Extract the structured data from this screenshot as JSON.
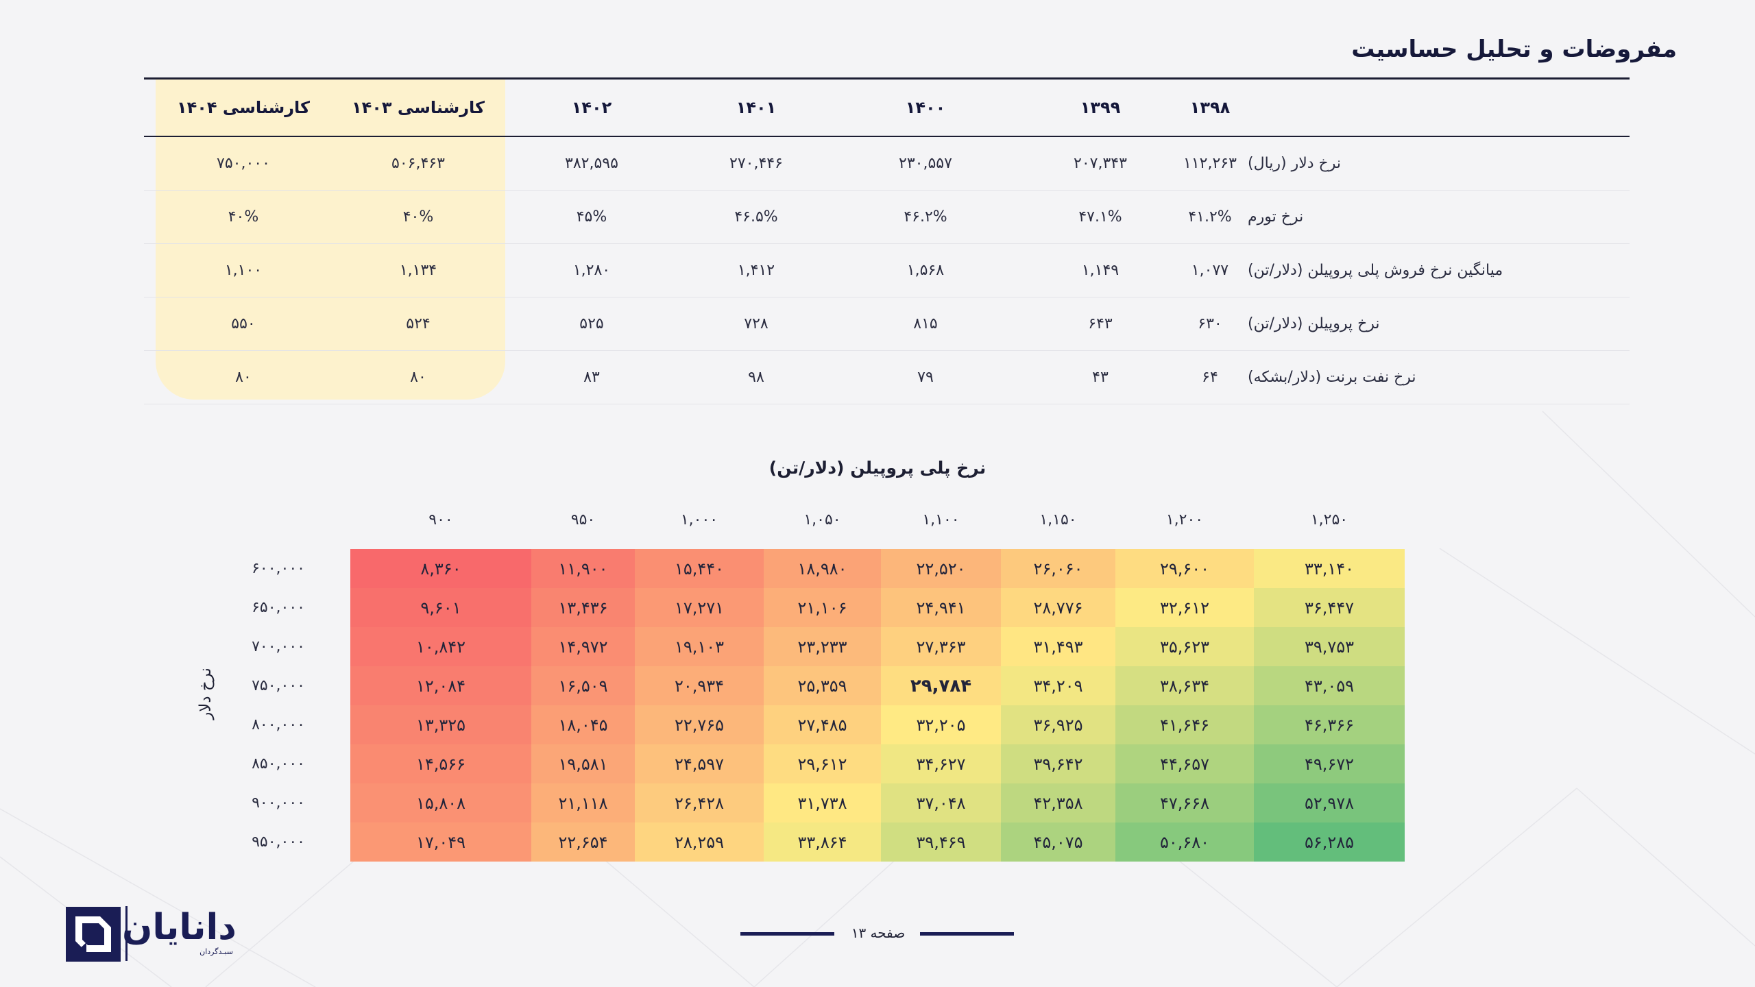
{
  "page": {
    "title": "مفروضات و تحلیل حساسیت",
    "footer": {
      "page_label": "صفحه ۱۳"
    },
    "logo": {
      "name": "دانایان",
      "subtitle": "سبـدگردان",
      "icon": "danayan-logo-icon"
    }
  },
  "colors": {
    "accent": "#1a1d55",
    "highlight": "#fdf2cd",
    "heat_low": "#f8696b",
    "heat_mid": "#ffeb84",
    "heat_high": "#63be7b"
  },
  "assumptions": {
    "columns": [
      "۱۳۹۸",
      "۱۳۹۹",
      "۱۴۰۰",
      "۱۴۰۱",
      "۱۴۰۲",
      "کارشناسی ۱۴۰۳",
      "کارشناسی ۱۴۰۴"
    ],
    "rows": [
      {
        "label": "نرخ دلار (ریال)",
        "values": [
          "۱۱۲,۲۶۳",
          "۲۰۷,۳۴۳",
          "۲۳۰,۵۵۷",
          "۲۷۰,۴۴۶",
          "۳۸۲,۵۹۵",
          "۵۰۶,۴۶۳",
          "۷۵۰,۰۰۰"
        ]
      },
      {
        "label": "نرخ تورم",
        "values": [
          "۴۱.۲%",
          "۴۷.۱%",
          "۴۶.۲%",
          "۴۶.۵%",
          "۴۵%",
          "۴۰%",
          "۴۰%"
        ]
      },
      {
        "label": "میانگین نرخ فروش پلی پروپیلن (دلار/تن)",
        "values": [
          "۱,۰۷۷",
          "۱,۱۴۹",
          "۱,۵۶۸",
          "۱,۴۱۲",
          "۱,۲۸۰",
          "۱,۱۳۴",
          "۱,۱۰۰"
        ]
      },
      {
        "label": "نرخ پروپیلن (دلار/تن)",
        "values": [
          "۶۳۰",
          "۶۴۳",
          "۸۱۵",
          "۷۲۸",
          "۵۲۵",
          "۵۲۴",
          "۵۵۰"
        ]
      },
      {
        "label": "نرخ نفت برنت (دلار/بشکه)",
        "values": [
          "۶۴",
          "۴۳",
          "۷۹",
          "۹۸",
          "۸۳",
          "۸۰",
          "۸۰"
        ]
      }
    ]
  },
  "sensitivity": {
    "title": "نرخ پلی پروپیلن (دلار/تن)",
    "y_axis_label": "نرخ دلار",
    "columns": [
      "۹۰۰",
      "۹۵۰",
      "۱,۰۰۰",
      "۱,۰۵۰",
      "۱,۱۰۰",
      "۱,۱۵۰",
      "۱,۲۰۰",
      "۱,۲۵۰"
    ],
    "rows": [
      {
        "label": "۶۰۰,۰۰۰",
        "values": [
          "۸,۳۶۰",
          "۱۱,۹۰۰",
          "۱۵,۴۴۰",
          "۱۸,۹۸۰",
          "۲۲,۵۲۰",
          "۲۶,۰۶۰",
          "۲۹,۶۰۰",
          "۳۳,۱۴۰"
        ],
        "nums": [
          8360,
          11900,
          15440,
          18980,
          22520,
          26060,
          29600,
          33140
        ]
      },
      {
        "label": "۶۵۰,۰۰۰",
        "values": [
          "۹,۶۰۱",
          "۱۳,۴۳۶",
          "۱۷,۲۷۱",
          "۲۱,۱۰۶",
          "۲۴,۹۴۱",
          "۲۸,۷۷۶",
          "۳۲,۶۱۲",
          "۳۶,۴۴۷"
        ],
        "nums": [
          9601,
          13436,
          17271,
          21106,
          24941,
          28776,
          32612,
          36447
        ]
      },
      {
        "label": "۷۰۰,۰۰۰",
        "values": [
          "۱۰,۸۴۲",
          "۱۴,۹۷۲",
          "۱۹,۱۰۳",
          "۲۳,۲۳۳",
          "۲۷,۳۶۳",
          "۳۱,۴۹۳",
          "۳۵,۶۲۳",
          "۳۹,۷۵۳"
        ],
        "nums": [
          10842,
          14972,
          19103,
          23233,
          27363,
          31493,
          35623,
          39753
        ]
      },
      {
        "label": "۷۵۰,۰۰۰",
        "values": [
          "۱۲,۰۸۴",
          "۱۶,۵۰۹",
          "۲۰,۹۳۴",
          "۲۵,۳۵۹",
          "۲۹,۷۸۴",
          "۳۴,۲۰۹",
          "۳۸,۶۳۴",
          "۴۳,۰۵۹"
        ],
        "nums": [
          12084,
          16509,
          20934,
          25359,
          29784,
          34209,
          38634,
          43059
        ]
      },
      {
        "label": "۸۰۰,۰۰۰",
        "values": [
          "۱۳,۳۲۵",
          "۱۸,۰۴۵",
          "۲۲,۷۶۵",
          "۲۷,۴۸۵",
          "۳۲,۲۰۵",
          "۳۶,۹۲۵",
          "۴۱,۶۴۶",
          "۴۶,۳۶۶"
        ],
        "nums": [
          13325,
          18045,
          22765,
          27485,
          32205,
          36925,
          41646,
          46366
        ]
      },
      {
        "label": "۸۵۰,۰۰۰",
        "values": [
          "۱۴,۵۶۶",
          "۱۹,۵۸۱",
          "۲۴,۵۹۷",
          "۲۹,۶۱۲",
          "۳۴,۶۲۷",
          "۳۹,۶۴۲",
          "۴۴,۶۵۷",
          "۴۹,۶۷۲"
        ],
        "nums": [
          14566,
          19581,
          24597,
          29612,
          34627,
          39642,
          44657,
          49672
        ]
      },
      {
        "label": "۹۰۰,۰۰۰",
        "values": [
          "۱۵,۸۰۸",
          "۲۱,۱۱۸",
          "۲۶,۴۲۸",
          "۳۱,۷۳۸",
          "۳۷,۰۴۸",
          "۴۲,۳۵۸",
          "۴۷,۶۶۸",
          "۵۲,۹۷۸"
        ],
        "nums": [
          15808,
          21118,
          26428,
          31738,
          37048,
          42358,
          47668,
          52978
        ]
      },
      {
        "label": "۹۵۰,۰۰۰",
        "values": [
          "۱۷,۰۴۹",
          "۲۲,۶۵۴",
          "۲۸,۲۵۹",
          "۳۳,۸۶۴",
          "۳۹,۴۶۹",
          "۴۵,۰۷۵",
          "۵۰,۶۸۰",
          "۵۶,۲۸۵"
        ],
        "nums": [
          17049,
          22654,
          28259,
          33864,
          39469,
          45075,
          50680,
          56285
        ]
      }
    ],
    "base_case": {
      "row": 3,
      "col": 4
    }
  }
}
